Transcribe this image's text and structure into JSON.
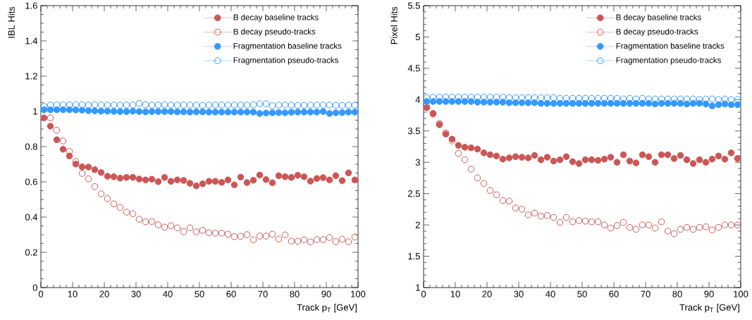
{
  "chart_data": [
    {
      "type": "scatter",
      "xlabel": "Track p$_{T}$ [GeV]",
      "ylabel": "IBL Hits",
      "marker": "circle",
      "legend": "top right",
      "grid": false,
      "xlim": [
        0,
        100
      ],
      "xticks": [
        0,
        10,
        20,
        30,
        40,
        50,
        60,
        70,
        80,
        90,
        100
      ],
      "ylim": [
        0,
        1.6
      ],
      "yticks": [
        0,
        0.2,
        0.4,
        0.6,
        0.8,
        1,
        1.2,
        1.4,
        1.6
      ],
      "x": [
        1,
        3,
        5,
        7,
        9,
        11,
        13,
        15,
        17,
        19,
        21,
        23,
        25,
        27,
        29,
        31,
        33,
        35,
        37,
        39,
        41,
        43,
        45,
        47,
        49,
        51,
        53,
        55,
        57,
        59,
        61,
        63,
        65,
        67,
        69,
        71,
        73,
        75,
        77,
        79,
        81,
        83,
        85,
        87,
        89,
        91,
        93,
        95,
        97,
        99
      ],
      "series": [
        {
          "name": "B decay baseline tracks",
          "color": "#cc5555",
          "values": [
            0.963,
            0.916,
            0.839,
            0.785,
            0.747,
            0.701,
            0.685,
            0.684,
            0.669,
            0.653,
            0.632,
            0.629,
            0.621,
            0.625,
            0.626,
            0.616,
            0.611,
            0.615,
            0.601,
            0.625,
            0.603,
            0.611,
            0.608,
            0.592,
            0.577,
            0.589,
            0.603,
            0.603,
            0.597,
            0.611,
            0.583,
            0.627,
            0.596,
            0.609,
            0.639,
            0.613,
            0.595,
            0.635,
            0.629,
            0.625,
            0.637,
            0.629,
            0.604,
            0.619,
            0.624,
            0.611,
            0.635,
            0.607,
            0.651,
            0.611
          ]
        },
        {
          "name": "B decay pseudo-tracks",
          "color": "#cc5555",
          "values": [
            null,
            0.963,
            0.893,
            0.832,
            0.773,
            0.716,
            0.648,
            0.617,
            0.573,
            0.532,
            0.505,
            0.475,
            0.455,
            0.428,
            0.419,
            0.388,
            0.373,
            0.375,
            0.356,
            0.343,
            0.351,
            0.339,
            0.317,
            0.339,
            0.316,
            0.325,
            0.311,
            0.309,
            0.309,
            0.303,
            0.289,
            0.291,
            0.3,
            0.271,
            0.292,
            0.292,
            0.303,
            0.275,
            0.299,
            0.264,
            0.263,
            0.272,
            0.259,
            0.272,
            0.272,
            0.284,
            0.261,
            0.275,
            0.26,
            0.287
          ]
        },
        {
          "name": "Fragmentation baseline tracks",
          "color": "#3399ff",
          "values": [
            1.009,
            1.009,
            1.009,
            1.009,
            1.009,
            1.008,
            1.007,
            1.004,
            1.003,
            1.001,
            1.001,
            1.0,
            0.999,
            0.999,
            1.001,
            0.999,
            0.997,
            0.999,
            0.999,
            0.999,
            0.999,
            0.997,
            0.997,
            0.996,
            0.997,
            0.997,
            0.996,
            0.996,
            0.996,
            0.996,
            0.996,
            0.996,
            0.996,
            0.996,
            0.988,
            0.991,
            0.992,
            0.993,
            0.992,
            0.995,
            0.996,
            0.996,
            0.996,
            0.996,
            0.999,
            0.988,
            0.992,
            0.993,
            0.996,
            0.996
          ]
        },
        {
          "name": "Fragmentation pseudo-tracks",
          "color": "#3399ff",
          "values": [
            1.028,
            1.036,
            1.038,
            1.038,
            1.038,
            1.038,
            1.038,
            1.036,
            1.038,
            1.036,
            1.036,
            1.036,
            1.036,
            1.036,
            1.036,
            1.045,
            1.038,
            1.036,
            1.036,
            1.038,
            1.036,
            1.036,
            1.036,
            1.036,
            1.036,
            1.034,
            1.036,
            1.036,
            1.036,
            1.036,
            1.036,
            1.036,
            1.036,
            1.038,
            1.043,
            1.043,
            1.032,
            1.036,
            1.036,
            1.036,
            1.034,
            1.034,
            1.036,
            1.036,
            1.036,
            1.036,
            1.034,
            1.034,
            1.036,
            1.036
          ]
        }
      ]
    },
    {
      "type": "scatter",
      "xlabel": "Track p$_{T}$ [GeV]",
      "ylabel": "Pixel Hits",
      "marker": "circle",
      "legend": "top right",
      "grid": false,
      "xlim": [
        0,
        100
      ],
      "xticks": [
        0,
        10,
        20,
        30,
        40,
        50,
        60,
        70,
        80,
        90,
        100
      ],
      "ylim": [
        1,
        5.5
      ],
      "yticks": [
        1,
        1.5,
        2,
        2.5,
        3,
        3.5,
        4,
        4.5,
        5,
        5.5
      ],
      "x": [
        1,
        3,
        5,
        7,
        9,
        11,
        13,
        15,
        17,
        19,
        21,
        23,
        25,
        27,
        29,
        31,
        33,
        35,
        37,
        39,
        41,
        43,
        45,
        47,
        49,
        51,
        53,
        55,
        57,
        59,
        61,
        63,
        65,
        67,
        69,
        71,
        73,
        75,
        77,
        79,
        81,
        83,
        85,
        87,
        89,
        91,
        93,
        95,
        97,
        99
      ],
      "series": [
        {
          "name": "B decay baseline tracks",
          "color": "#cc5555",
          "values": [
            3.87,
            3.78,
            3.6,
            3.45,
            3.37,
            3.27,
            3.24,
            3.23,
            3.21,
            3.15,
            3.12,
            3.1,
            3.05,
            3.07,
            3.09,
            3.08,
            3.07,
            3.11,
            3.04,
            3.08,
            3.02,
            3.04,
            3.09,
            3.01,
            2.98,
            3.04,
            3.04,
            3.03,
            3.05,
            3.08,
            3.0,
            3.12,
            3.02,
            2.99,
            3.12,
            3.09,
            3.0,
            3.12,
            3.12,
            3.06,
            3.11,
            3.04,
            2.98,
            3.04,
            3.0,
            3.05,
            3.1,
            3.05,
            3.15,
            3.06
          ]
        },
        {
          "name": "B decay pseudo-tracks",
          "color": "#cc5555",
          "values": [
            3.9,
            3.77,
            3.62,
            3.47,
            3.34,
            3.14,
            3.04,
            2.89,
            2.75,
            2.66,
            2.55,
            2.48,
            2.39,
            2.38,
            2.27,
            2.25,
            2.16,
            2.19,
            2.14,
            2.15,
            2.12,
            2.04,
            2.12,
            2.05,
            2.07,
            2.06,
            2.05,
            2.05,
            2.0,
            1.95,
            1.99,
            2.04,
            1.96,
            1.93,
            2.0,
            2.0,
            1.95,
            2.05,
            1.9,
            1.86,
            1.93,
            1.96,
            1.93,
            1.96,
            1.97,
            1.92,
            1.96,
            2.0,
            2.0,
            2.0
          ]
        },
        {
          "name": "Fragmentation baseline tracks",
          "color": "#3399ff",
          "values": [
            3.97,
            3.97,
            3.97,
            3.97,
            3.97,
            3.97,
            3.97,
            3.97,
            3.96,
            3.96,
            3.96,
            3.96,
            3.96,
            3.95,
            3.95,
            3.95,
            3.95,
            3.95,
            3.94,
            3.94,
            3.94,
            3.94,
            3.94,
            3.94,
            3.94,
            3.94,
            3.94,
            3.94,
            3.94,
            3.94,
            3.94,
            3.94,
            3.94,
            3.94,
            3.94,
            3.94,
            3.93,
            3.94,
            3.94,
            3.94,
            3.94,
            3.93,
            3.94,
            3.94,
            3.93,
            3.9,
            3.92,
            3.93,
            3.92,
            3.92
          ]
        },
        {
          "name": "Fragmentation pseudo-tracks",
          "color": "#3399ff",
          "values": [
            4.03,
            4.04,
            4.04,
            4.04,
            4.04,
            4.04,
            4.04,
            4.04,
            4.04,
            4.04,
            4.04,
            4.04,
            4.04,
            4.03,
            4.03,
            4.03,
            4.03,
            4.03,
            4.03,
            4.03,
            4.03,
            4.02,
            4.02,
            4.02,
            4.02,
            4.02,
            4.02,
            4.02,
            4.02,
            4.02,
            4.02,
            4.01,
            4.02,
            4.01,
            4.02,
            4.01,
            4.01,
            4.01,
            4.01,
            4.01,
            4.01,
            4.01,
            4.01,
            4.0,
            4.01,
            4.01,
            4.0,
            4.01,
            4.0,
            4.0
          ]
        }
      ]
    }
  ]
}
